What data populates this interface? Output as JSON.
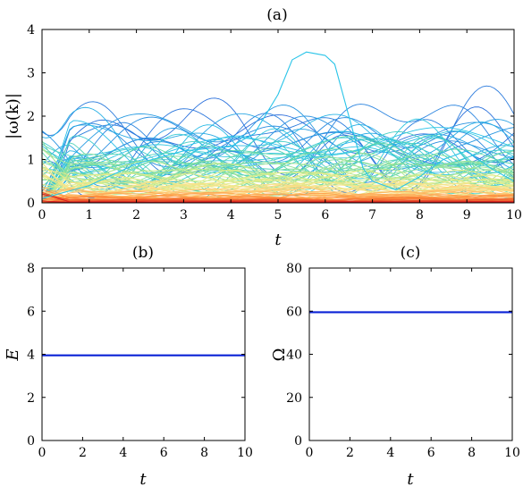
{
  "chart_data": [
    {
      "panel": "a",
      "type": "line",
      "title": "(a)",
      "xlabel": "t",
      "ylabel": "|ω(k)|",
      "xlim": [
        0,
        10
      ],
      "ylim": [
        0,
        4
      ],
      "xticks": [
        "0",
        "1",
        "2",
        "3",
        "4",
        "5",
        "6",
        "7",
        "8",
        "9",
        "10"
      ],
      "yticks": [
        "0",
        "1",
        "2",
        "3",
        "4"
      ],
      "grid": false,
      "colormap": [
        "#d7191c",
        "#fd8d3c",
        "#fee08b",
        "#d9ef8b",
        "#66d9a6",
        "#29c4e8",
        "#2b6cdb"
      ],
      "series_count": 110,
      "highlight_series": {
        "color": "#29c4e8",
        "x": [
          0,
          1,
          2,
          3,
          4,
          4.5,
          5,
          5.3,
          5.6,
          6,
          6.2,
          6.5,
          6.8,
          7,
          7.5,
          8,
          8.5,
          9,
          9.5,
          10
        ],
        "values": [
          0.1,
          0.4,
          0.9,
          1.2,
          1.3,
          1.6,
          2.5,
          3.3,
          3.48,
          3.4,
          3.2,
          2.0,
          0.8,
          0.5,
          0.3,
          0.6,
          1.0,
          1.2,
          0.8,
          0.5
        ]
      }
    },
    {
      "panel": "b",
      "type": "line",
      "title": "(b)",
      "xlabel": "t",
      "ylabel": "E",
      "xlim": [
        0,
        10
      ],
      "ylim": [
        0,
        8
      ],
      "xticks": [
        "0",
        "2",
        "4",
        "6",
        "8",
        "10"
      ],
      "yticks": [
        "0",
        "2",
        "4",
        "6",
        "8"
      ],
      "grid": false,
      "series": [
        {
          "color": "#0a22d6",
          "x": [
            0,
            10
          ],
          "values": [
            3.95,
            3.95
          ]
        }
      ]
    },
    {
      "panel": "c",
      "type": "line",
      "title": "(c)",
      "xlabel": "t",
      "ylabel": "Ω",
      "xlim": [
        0,
        10
      ],
      "ylim": [
        0,
        80
      ],
      "xticks": [
        "0",
        "2",
        "4",
        "6",
        "8",
        "10"
      ],
      "yticks": [
        "0",
        "20",
        "40",
        "60",
        "80"
      ],
      "grid": false,
      "series": [
        {
          "color": "#0a22d6",
          "x": [
            0,
            10
          ],
          "values": [
            59.5,
            59.5
          ]
        }
      ]
    }
  ]
}
